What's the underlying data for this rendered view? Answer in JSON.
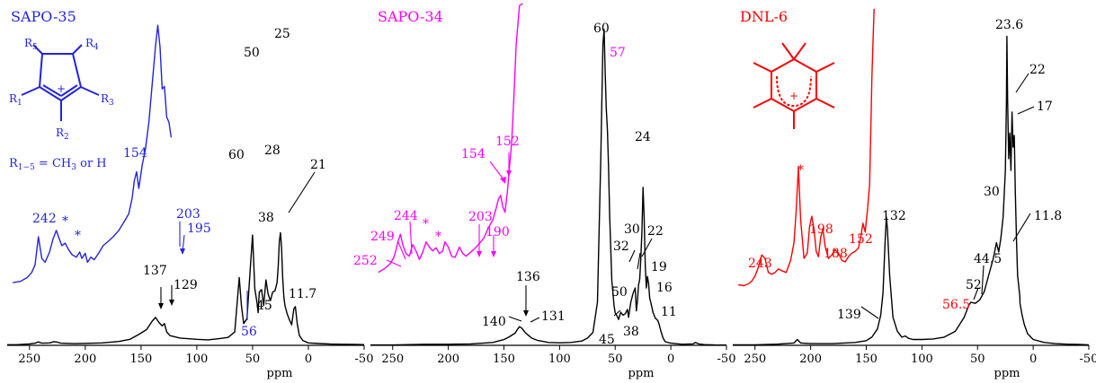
{
  "chart_data": [
    {
      "type": "line",
      "title": "SAPO-35",
      "xlabel": "ppm",
      "xlim": [
        270,
        -50
      ],
      "x_ticks": [
        "250",
        "200",
        "150",
        "100",
        "50",
        "0",
        "-50"
      ],
      "grid": false,
      "series": [
        {
          "color": "#000000",
          "x": [
            270,
            260,
            250,
            245,
            242,
            239,
            232,
            228,
            225,
            222,
            210,
            200,
            185,
            170,
            160,
            152,
            145,
            140,
            137,
            134,
            131,
            129,
            127,
            124,
            115,
            100,
            90,
            80,
            72,
            66,
            62,
            60,
            58,
            55,
            52,
            50,
            48,
            46,
            45,
            44,
            42,
            40,
            38,
            36,
            34,
            32,
            30,
            28,
            27,
            26,
            25,
            24,
            23,
            22,
            21,
            19,
            17,
            15,
            13,
            11.7,
            10,
            8,
            5,
            0,
            -10,
            -20,
            -30,
            -40,
            -50
          ],
          "y": [
            0.5,
            0.6,
            1.2,
            1.8,
            2.8,
            1.8,
            2.0,
            3.0,
            2.6,
            1.8,
            1.4,
            1.6,
            2.0,
            3.2,
            5,
            9,
            13,
            20,
            23,
            19,
            16,
            18,
            11,
            8,
            6,
            5,
            4.5,
            5.5,
            6.5,
            11,
            56,
            33,
            18,
            22,
            65,
            91,
            47,
            35,
            27,
            44,
            46,
            33,
            54,
            42,
            37,
            44,
            45,
            52,
            66,
            86,
            93,
            80,
            56,
            40,
            33,
            26,
            21,
            17,
            30,
            32,
            18,
            8,
            4,
            2,
            1.5,
            1.0,
            0.9,
            0.8,
            0.6
          ]
        },
        {
          "color": "#2323e0",
          "label": "×",
          "x": [
            265,
            258,
            252,
            248,
            245,
            242,
            239,
            236,
            232,
            229,
            226,
            224,
            221,
            218,
            215,
            212,
            208,
            205,
            203,
            200,
            198,
            195,
            192,
            188,
            184,
            180,
            175,
            170,
            165,
            161,
            158,
            156,
            154,
            152,
            149,
            146,
            143,
            140,
            137,
            135,
            133,
            131,
            129,
            127,
            125,
            123
          ],
          "y": [
            26,
            27,
            30,
            34,
            40,
            62,
            45,
            42,
            50,
            60,
            67,
            62,
            55,
            57,
            52,
            48,
            46,
            50,
            45,
            49,
            42,
            46,
            44,
            49,
            55,
            58,
            62,
            67,
            74,
            80,
            92,
            106,
            113,
            100,
            118,
            131,
            152,
            182,
            212,
            228,
            211,
            178,
            180,
            156,
            152,
            140
          ]
        }
      ],
      "annotations": [
        {
          "text": "25",
          "color": "#000000"
        },
        {
          "text": "50",
          "color": "#000000"
        },
        {
          "text": "60",
          "color": "#000000"
        },
        {
          "text": "28",
          "color": "#000000"
        },
        {
          "text": "38",
          "color": "#000000"
        },
        {
          "text": "45",
          "color": "#000000"
        },
        {
          "text": "21",
          "color": "#000000"
        },
        {
          "text": "11.7",
          "color": "#000000"
        },
        {
          "text": "137",
          "color": "#000000"
        },
        {
          "text": "129",
          "color": "#000000"
        },
        {
          "text": "56",
          "color": "#2323e0"
        },
        {
          "text": "154",
          "color": "#2323e0"
        },
        {
          "text": "242",
          "color": "#2323e0"
        },
        {
          "text": "203",
          "color": "#2323e0"
        },
        {
          "text": "195",
          "color": "#2323e0"
        },
        {
          "text": "*",
          "color": "#2323e0"
        },
        {
          "text": "*",
          "color": "#2323e0"
        }
      ],
      "inset_labels": {
        "r_label": "R",
        "r1": "1",
        "r2": "2",
        "r3": "3",
        "r4": "4",
        "r5": "5",
        "formula_a": "R",
        "formula_sub1": "1−5",
        "formula_b": " = CH",
        "formula_sub2": "3",
        "formula_c": " or H"
      }
    },
    {
      "type": "line",
      "title": "SAPO-34",
      "xlabel": "ppm",
      "xlim": [
        270,
        -50
      ],
      "x_ticks": [
        "250",
        "200",
        "150",
        "100",
        "50",
        "0",
        "-50"
      ],
      "grid": false,
      "series": [
        {
          "color": "#000000",
          "x": [
            270,
            250,
            220,
            200,
            180,
            160,
            150,
            145,
            140,
            138,
            136,
            134,
            131,
            128,
            125,
            120,
            110,
            100,
            90,
            80,
            75,
            70,
            66,
            63,
            61,
            60,
            59,
            58,
            57,
            56,
            55,
            53,
            51,
            50,
            48,
            47,
            45,
            43,
            41,
            39,
            38,
            36,
            34,
            32,
            31,
            30,
            29,
            28,
            27,
            26,
            25,
            24,
            23,
            22,
            21,
            20,
            19,
            18,
            16,
            14,
            12,
            11,
            9,
            7,
            5,
            0,
            -10,
            -20,
            -22,
            -25,
            -30,
            -40,
            -50
          ],
          "y": [
            0.5,
            0.5,
            1.5,
            1.5,
            2,
            4,
            8,
            12,
            17,
            22,
            26,
            24,
            18,
            14,
            10,
            7,
            4,
            3.5,
            4,
            6,
            10,
            18,
            60,
            260,
            420,
            440,
            380,
            330,
            300,
            250,
            180,
            90,
            55,
            45,
            40,
            36,
            46,
            42,
            44,
            50,
            39,
            60,
            72,
            80,
            48,
            62,
            84,
            92,
            120,
            160,
            220,
            180,
            110,
            80,
            96,
            86,
            66,
            60,
            46,
            38,
            35,
            32,
            20,
            10,
            5,
            3,
            1.5,
            2,
            4,
            2,
            1,
            0.5,
            0.4
          ]
        },
        {
          "color": "#ff00ff",
          "label": "×",
          "x": [
            263,
            258,
            255,
            252,
            249,
            247,
            245,
            243,
            241,
            238,
            235,
            232,
            229,
            226,
            223,
            220,
            217,
            214,
            211,
            208,
            205,
            203,
            200,
            197,
            194,
            190,
            187,
            184,
            180,
            176,
            172,
            168,
            164,
            160,
            157,
            155,
            153,
            151,
            149,
            147,
            145,
            143,
            141,
            139,
            136,
            133
          ],
          "y": [
            27,
            32,
            36,
            41,
            50,
            62,
            76,
            86,
            70,
            56,
            52,
            70,
            60,
            47,
            58,
            74,
            66,
            60,
            65,
            56,
            60,
            74,
            66,
            52,
            50,
            66,
            56,
            52,
            58,
            64,
            72,
            80,
            96,
            108,
            126,
            140,
            146,
            128,
            120,
            150,
            190,
            230,
            300,
            380,
            440,
            460
          ]
        }
      ],
      "annotations": [
        {
          "text": "60",
          "color": "#000000"
        },
        {
          "text": "24",
          "color": "#000000"
        },
        {
          "text": "30",
          "color": "#000000"
        },
        {
          "text": "22",
          "color": "#000000"
        },
        {
          "text": "32",
          "color": "#000000"
        },
        {
          "text": "19",
          "color": "#000000"
        },
        {
          "text": "16",
          "color": "#000000"
        },
        {
          "text": "50",
          "color": "#000000"
        },
        {
          "text": "11",
          "color": "#000000"
        },
        {
          "text": "45",
          "color": "#000000"
        },
        {
          "text": "38",
          "color": "#000000"
        },
        {
          "text": "136",
          "color": "#000000"
        },
        {
          "text": "140",
          "color": "#000000"
        },
        {
          "text": "131",
          "color": "#000000"
        },
        {
          "text": "57",
          "color": "#ff00ff"
        },
        {
          "text": "154",
          "color": "#ff00ff"
        },
        {
          "text": "152",
          "color": "#ff00ff"
        },
        {
          "text": "244",
          "color": "#ff00ff"
        },
        {
          "text": "249",
          "color": "#ff00ff"
        },
        {
          "text": "252",
          "color": "#ff00ff"
        },
        {
          "text": "203",
          "color": "#ff00ff"
        },
        {
          "text": "190",
          "color": "#ff00ff"
        },
        {
          "text": "*",
          "color": "#ff00ff"
        },
        {
          "text": "*",
          "color": "#ff00ff"
        }
      ]
    },
    {
      "type": "line",
      "title": "DNL-6",
      "xlabel": "ppm",
      "xlim": [
        270,
        -50
      ],
      "x_ticks": [
        "250",
        "200",
        "150",
        "100",
        "50",
        "0",
        "-50"
      ],
      "grid": false,
      "series": [
        {
          "color": "#000000",
          "x": [
            270,
            250,
            230,
            215,
            212,
            209,
            200,
            180,
            160,
            150,
            145,
            140,
            137,
            135,
            133,
            132,
            131,
            129,
            126,
            122,
            118,
            115,
            112,
            108,
            100,
            90,
            80,
            70,
            62,
            58,
            56,
            52,
            48,
            44,
            40,
            36,
            33,
            31,
            29,
            27,
            25,
            24,
            23.6,
            23,
            22,
            21,
            20,
            19,
            18,
            17,
            16,
            15,
            14,
            12,
            11.8,
            10,
            8,
            5,
            0,
            -10,
            -20,
            -30,
            -40,
            -50
          ],
          "y": [
            0.5,
            0.5,
            1,
            2,
            5,
            2,
            1.5,
            1.5,
            2.5,
            4,
            7,
            14,
            26,
            45,
            90,
            110,
            100,
            60,
            24,
            12,
            7,
            8,
            6,
            5,
            5,
            5.5,
            7,
            12,
            24,
            34,
            37,
            36,
            39,
            46,
            60,
            74,
            88,
            80,
            92,
            110,
            150,
            210,
            265,
            210,
            160,
            182,
            150,
            200,
            170,
            180,
            130,
            90,
            60,
            42,
            36,
            26,
            18,
            10,
            5,
            2.5,
            1.5,
            1,
            0.8,
            0.5
          ]
        },
        {
          "color": "#ff0000",
          "label": "×",
          "x": [
            265,
            260,
            256,
            253,
            250,
            247,
            244,
            241,
            238,
            235,
            232,
            229,
            226,
            222,
            218,
            215,
            213,
            211,
            209,
            206,
            203,
            201,
            199,
            197,
            195,
            193,
            191,
            189,
            187,
            184,
            181,
            178,
            175,
            172,
            169,
            166,
            163,
            160,
            157,
            155,
            153,
            151,
            149,
            147,
            146,
            145,
            144,
            143
          ],
          "y": [
            26,
            25,
            27,
            30,
            36,
            46,
            60,
            56,
            40,
            38,
            40,
            44,
            42,
            40,
            54,
            74,
            110,
            160,
            100,
            56,
            62,
            92,
            104,
            90,
            64,
            58,
            80,
            90,
            70,
            56,
            60,
            66,
            62,
            54,
            52,
            58,
            62,
            64,
            68,
            80,
            96,
            86,
            110,
            140,
            200,
            260,
            300,
            340
          ]
        }
      ],
      "annotations": [
        {
          "text": "23.6",
          "color": "#000000"
        },
        {
          "text": "22",
          "color": "#000000"
        },
        {
          "text": "17",
          "color": "#000000"
        },
        {
          "text": "30",
          "color": "#000000"
        },
        {
          "text": "44.5",
          "color": "#000000"
        },
        {
          "text": "52",
          "color": "#000000"
        },
        {
          "text": "11.8",
          "color": "#000000"
        },
        {
          "text": "132",
          "color": "#000000"
        },
        {
          "text": "139",
          "color": "#000000"
        },
        {
          "text": "56.5",
          "color": "#ff0000"
        },
        {
          "text": "243",
          "color": "#ff0000"
        },
        {
          "text": "198",
          "color": "#ff0000"
        },
        {
          "text": "188",
          "color": "#ff0000"
        },
        {
          "text": "152",
          "color": "#ff0000"
        },
        {
          "text": "*",
          "color": "#ff0000"
        }
      ]
    }
  ]
}
